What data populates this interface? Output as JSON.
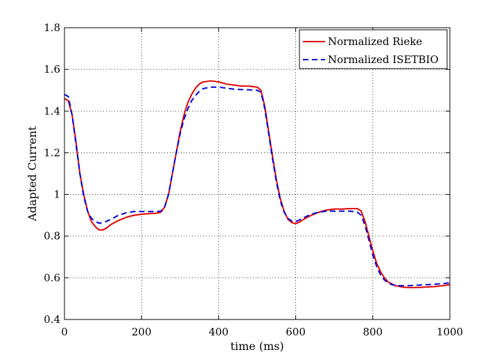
{
  "chart_data": {
    "type": "line",
    "xlabel": "time (ms)",
    "ylabel": "Adapted Current",
    "xlim": [
      0,
      1000
    ],
    "ylim": [
      0.4,
      1.8
    ],
    "xticks": [
      "0",
      "200",
      "400",
      "600",
      "800",
      "1000"
    ],
    "yticks": [
      "0.4",
      "0.6",
      "0.8",
      "1",
      "1.2",
      "1.4",
      "1.6",
      "1.8"
    ],
    "grid": true,
    "legend_position": "top-right",
    "series": [
      {
        "name": "Normalized Rieke",
        "color": "#e00000",
        "style": "solid",
        "points": [
          [
            0,
            1.46
          ],
          [
            10,
            1.45
          ],
          [
            20,
            1.38
          ],
          [
            30,
            1.25
          ],
          [
            40,
            1.1
          ],
          [
            50,
            1.0
          ],
          [
            60,
            0.92
          ],
          [
            70,
            0.87
          ],
          [
            80,
            0.845
          ],
          [
            90,
            0.83
          ],
          [
            100,
            0.83
          ],
          [
            110,
            0.84
          ],
          [
            120,
            0.855
          ],
          [
            140,
            0.875
          ],
          [
            160,
            0.89
          ],
          [
            180,
            0.9
          ],
          [
            200,
            0.905
          ],
          [
            220,
            0.908
          ],
          [
            240,
            0.91
          ],
          [
            250,
            0.915
          ],
          [
            260,
            0.94
          ],
          [
            270,
            1.0
          ],
          [
            280,
            1.1
          ],
          [
            290,
            1.2
          ],
          [
            300,
            1.3
          ],
          [
            310,
            1.38
          ],
          [
            320,
            1.44
          ],
          [
            330,
            1.48
          ],
          [
            340,
            1.51
          ],
          [
            350,
            1.53
          ],
          [
            360,
            1.54
          ],
          [
            380,
            1.545
          ],
          [
            400,
            1.54
          ],
          [
            420,
            1.53
          ],
          [
            440,
            1.525
          ],
          [
            460,
            1.52
          ],
          [
            480,
            1.52
          ],
          [
            500,
            1.515
          ],
          [
            510,
            1.5
          ],
          [
            520,
            1.42
          ],
          [
            530,
            1.3
          ],
          [
            540,
            1.18
          ],
          [
            550,
            1.07
          ],
          [
            560,
            0.98
          ],
          [
            570,
            0.92
          ],
          [
            580,
            0.88
          ],
          [
            590,
            0.865
          ],
          [
            600,
            0.86
          ],
          [
            610,
            0.868
          ],
          [
            620,
            0.88
          ],
          [
            640,
            0.9
          ],
          [
            660,
            0.915
          ],
          [
            680,
            0.925
          ],
          [
            700,
            0.93
          ],
          [
            720,
            0.93
          ],
          [
            740,
            0.932
          ],
          [
            760,
            0.932
          ],
          [
            770,
            0.92
          ],
          [
            780,
            0.87
          ],
          [
            790,
            0.8
          ],
          [
            800,
            0.73
          ],
          [
            810,
            0.67
          ],
          [
            820,
            0.63
          ],
          [
            830,
            0.6
          ],
          [
            840,
            0.58
          ],
          [
            850,
            0.57
          ],
          [
            860,
            0.562
          ],
          [
            880,
            0.555
          ],
          [
            900,
            0.553
          ],
          [
            920,
            0.554
          ],
          [
            940,
            0.556
          ],
          [
            960,
            0.558
          ],
          [
            980,
            0.562
          ],
          [
            1000,
            0.567
          ]
        ]
      },
      {
        "name": "Normalized ISETBIO",
        "color": "#0000e0",
        "style": "dashed",
        "points": [
          [
            0,
            1.48
          ],
          [
            10,
            1.47
          ],
          [
            20,
            1.38
          ],
          [
            30,
            1.24
          ],
          [
            40,
            1.1
          ],
          [
            50,
            0.99
          ],
          [
            60,
            0.92
          ],
          [
            70,
            0.885
          ],
          [
            80,
            0.87
          ],
          [
            90,
            0.862
          ],
          [
            100,
            0.865
          ],
          [
            110,
            0.872
          ],
          [
            120,
            0.88
          ],
          [
            140,
            0.9
          ],
          [
            160,
            0.912
          ],
          [
            180,
            0.918
          ],
          [
            200,
            0.918
          ],
          [
            220,
            0.918
          ],
          [
            240,
            0.918
          ],
          [
            250,
            0.92
          ],
          [
            260,
            0.94
          ],
          [
            270,
            1.0
          ],
          [
            280,
            1.1
          ],
          [
            290,
            1.2
          ],
          [
            300,
            1.29
          ],
          [
            310,
            1.36
          ],
          [
            320,
            1.41
          ],
          [
            330,
            1.45
          ],
          [
            340,
            1.475
          ],
          [
            350,
            1.495
          ],
          [
            360,
            1.508
          ],
          [
            380,
            1.515
          ],
          [
            400,
            1.515
          ],
          [
            420,
            1.51
          ],
          [
            440,
            1.505
          ],
          [
            460,
            1.503
          ],
          [
            480,
            1.502
          ],
          [
            500,
            1.5
          ],
          [
            510,
            1.49
          ],
          [
            520,
            1.41
          ],
          [
            530,
            1.29
          ],
          [
            540,
            1.17
          ],
          [
            550,
            1.06
          ],
          [
            560,
            0.97
          ],
          [
            570,
            0.915
          ],
          [
            580,
            0.885
          ],
          [
            590,
            0.872
          ],
          [
            600,
            0.87
          ],
          [
            610,
            0.878
          ],
          [
            620,
            0.888
          ],
          [
            640,
            0.905
          ],
          [
            660,
            0.915
          ],
          [
            680,
            0.92
          ],
          [
            700,
            0.92
          ],
          [
            720,
            0.92
          ],
          [
            740,
            0.92
          ],
          [
            760,
            0.915
          ],
          [
            770,
            0.9
          ],
          [
            780,
            0.85
          ],
          [
            790,
            0.78
          ],
          [
            800,
            0.71
          ],
          [
            810,
            0.655
          ],
          [
            820,
            0.615
          ],
          [
            830,
            0.59
          ],
          [
            840,
            0.575
          ],
          [
            850,
            0.567
          ],
          [
            860,
            0.563
          ],
          [
            880,
            0.562
          ],
          [
            900,
            0.563
          ],
          [
            920,
            0.565
          ],
          [
            940,
            0.567
          ],
          [
            960,
            0.569
          ],
          [
            980,
            0.572
          ],
          [
            1000,
            0.576
          ]
        ]
      }
    ]
  }
}
